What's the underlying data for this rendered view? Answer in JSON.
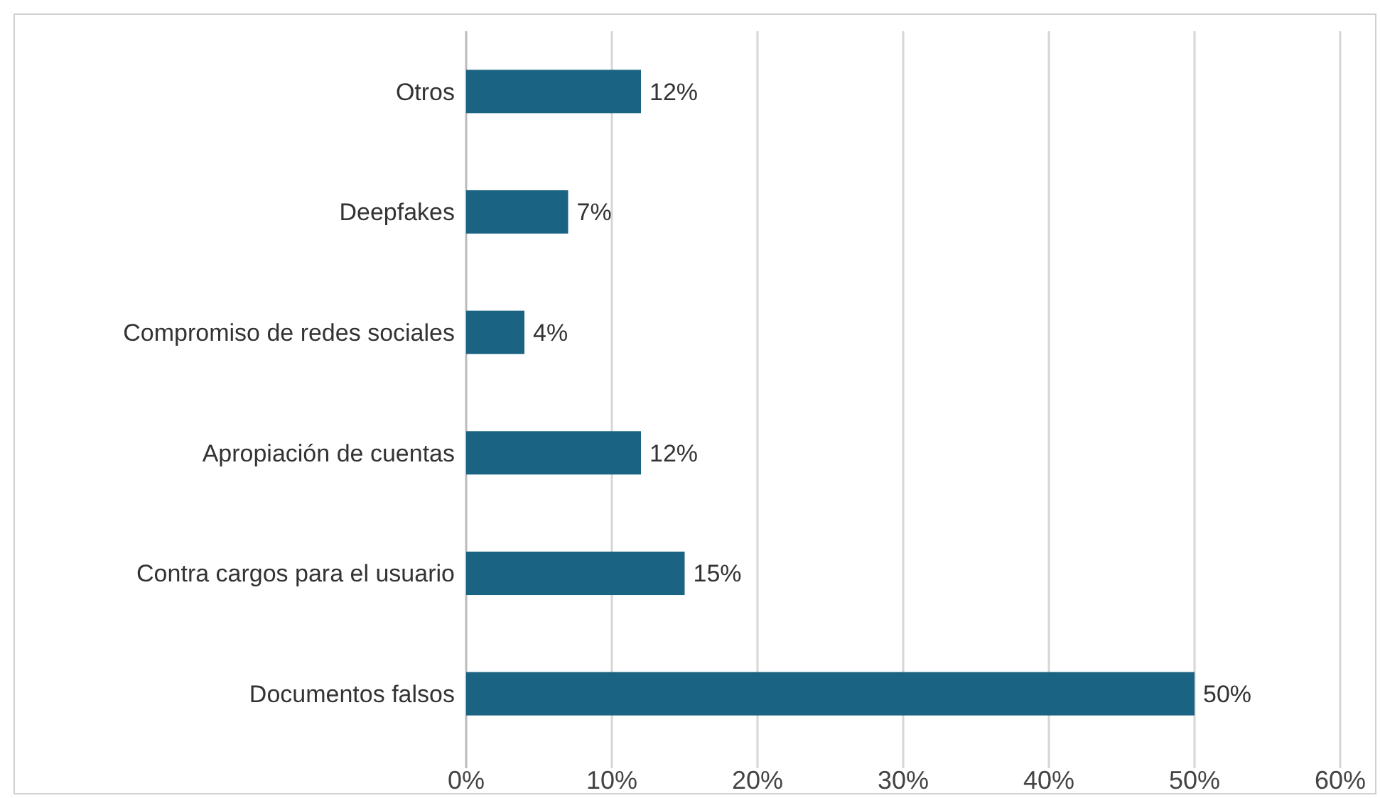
{
  "chart_data": {
    "type": "bar",
    "orientation": "horizontal",
    "categories": [
      "Otros",
      "Deepfakes",
      "Compromiso de redes sociales",
      "Apropiación de cuentas",
      "Contra cargos para el usuario",
      "Documentos falsos"
    ],
    "values": [
      12,
      7,
      4,
      12,
      15,
      50
    ],
    "value_labels": [
      "12%",
      "7%",
      "4%",
      "12%",
      "15%",
      "50%"
    ],
    "color": "#1b6382",
    "xlim": [
      0,
      60
    ],
    "xticks": [
      {
        "value": 0,
        "label": "0%"
      },
      {
        "value": 10,
        "label": "10%"
      },
      {
        "value": 20,
        "label": "20%"
      },
      {
        "value": 30,
        "label": "30%"
      },
      {
        "value": 40,
        "label": "40%"
      },
      {
        "value": 50,
        "label": "50%"
      },
      {
        "value": 60,
        "label": "60%"
      }
    ],
    "grid": "x"
  }
}
